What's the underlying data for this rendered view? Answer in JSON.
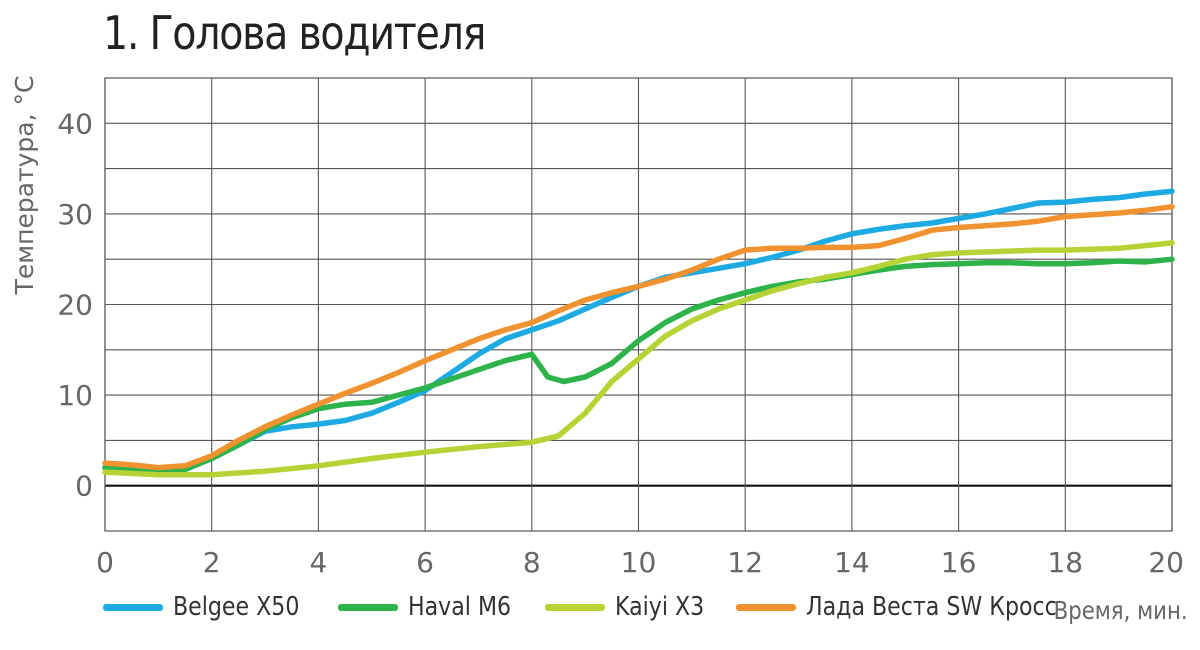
{
  "chart_data": {
    "type": "line",
    "title": "1. Голова водителя",
    "xlabel": "Время, мин.",
    "ylabel": "Температура, °С",
    "xlim": [
      0,
      20
    ],
    "ylim": [
      -5,
      45
    ],
    "x_ticks": [
      0,
      2,
      4,
      6,
      8,
      10,
      12,
      14,
      16,
      18,
      20
    ],
    "y_ticks": [
      0,
      10,
      20,
      30,
      40
    ],
    "grid": true,
    "legend_position": "bottom",
    "series": [
      {
        "name": "Belgee X50",
        "color": "#1da9e2",
        "x": [
          0,
          0.5,
          1,
          1.5,
          2,
          2.5,
          3,
          3.5,
          4,
          4.5,
          5,
          5.5,
          6,
          6.5,
          7,
          7.5,
          8,
          8.5,
          9,
          9.5,
          10,
          10.5,
          11,
          11.5,
          12,
          12.5,
          13,
          13.5,
          14,
          14.5,
          15,
          15.5,
          16,
          16.5,
          17,
          17.5,
          18,
          18.5,
          19,
          19.5,
          20
        ],
        "y": [
          2.0,
          1.8,
          1.6,
          1.8,
          3.0,
          4.5,
          6.0,
          6.5,
          6.8,
          7.2,
          8.0,
          9.2,
          10.5,
          12.5,
          14.5,
          16.2,
          17.2,
          18.2,
          19.5,
          20.8,
          22.0,
          23.0,
          23.5,
          24.0,
          24.5,
          25.2,
          26.0,
          27.0,
          27.8,
          28.3,
          28.7,
          29.0,
          29.5,
          30.0,
          30.6,
          31.2,
          31.3,
          31.6,
          31.8,
          32.2,
          32.5
        ]
      },
      {
        "name": "Haval M6",
        "color": "#2db34a",
        "x": [
          0,
          0.5,
          1,
          1.5,
          2,
          2.5,
          3,
          3.5,
          4,
          4.5,
          5,
          5.5,
          6,
          6.5,
          7,
          7.5,
          8,
          8.3,
          8.6,
          9,
          9.5,
          10,
          10.5,
          11,
          11.5,
          12,
          12.5,
          13,
          13.5,
          14,
          14.5,
          15,
          15.5,
          16,
          16.5,
          17,
          17.5,
          18,
          18.5,
          19,
          19.5,
          20
        ],
        "y": [
          2.0,
          1.8,
          1.6,
          1.8,
          3.0,
          4.5,
          6.2,
          7.5,
          8.5,
          9.0,
          9.2,
          10.0,
          10.8,
          11.8,
          12.8,
          13.8,
          14.5,
          12.0,
          11.5,
          12.0,
          13.5,
          16.0,
          18.0,
          19.5,
          20.5,
          21.3,
          22.0,
          22.5,
          22.8,
          23.3,
          23.8,
          24.2,
          24.4,
          24.5,
          24.6,
          24.6,
          24.5,
          24.5,
          24.6,
          24.8,
          24.7,
          25.0
        ]
      },
      {
        "name": "Kaiyi X3",
        "color": "#b5d334",
        "x": [
          0,
          1,
          2,
          3,
          4,
          5,
          6,
          7,
          8,
          8.5,
          9,
          9.5,
          10,
          10.5,
          11,
          11.5,
          12,
          12.5,
          13,
          13.5,
          14,
          14.5,
          15,
          15.5,
          16,
          16.5,
          17,
          17.5,
          18,
          18.5,
          19,
          19.5,
          20
        ],
        "y": [
          1.5,
          1.2,
          1.2,
          1.6,
          2.2,
          3.0,
          3.7,
          4.3,
          4.8,
          5.5,
          8.0,
          11.5,
          14.0,
          16.5,
          18.2,
          19.5,
          20.5,
          21.5,
          22.3,
          23.0,
          23.5,
          24.2,
          25.0,
          25.5,
          25.7,
          25.8,
          25.9,
          26.0,
          26.0,
          26.1,
          26.2,
          26.5,
          26.8
        ]
      },
      {
        "name": "Лада Веста SW Кросс",
        "color": "#f0922f",
        "x": [
          0,
          0.5,
          1,
          1.5,
          2,
          2.5,
          3,
          3.5,
          4,
          4.5,
          5,
          5.5,
          6,
          6.5,
          7,
          7.5,
          8,
          8.5,
          9,
          9.5,
          10,
          10.5,
          11,
          11.5,
          12,
          12.5,
          13,
          13.5,
          14,
          14.5,
          15,
          15.5,
          16,
          16.5,
          17,
          17.5,
          18,
          18.5,
          19,
          19.5,
          20
        ],
        "y": [
          2.5,
          2.3,
          2.0,
          2.2,
          3.3,
          5.0,
          6.5,
          7.8,
          9.0,
          10.2,
          11.3,
          12.5,
          13.8,
          15.0,
          16.2,
          17.2,
          18.0,
          19.3,
          20.5,
          21.3,
          22.0,
          22.8,
          23.8,
          25.0,
          26.0,
          26.2,
          26.2,
          26.3,
          26.3,
          26.5,
          27.3,
          28.2,
          28.5,
          28.7,
          28.9,
          29.2,
          29.7,
          29.9,
          30.1,
          30.4,
          30.8
        ]
      }
    ]
  }
}
